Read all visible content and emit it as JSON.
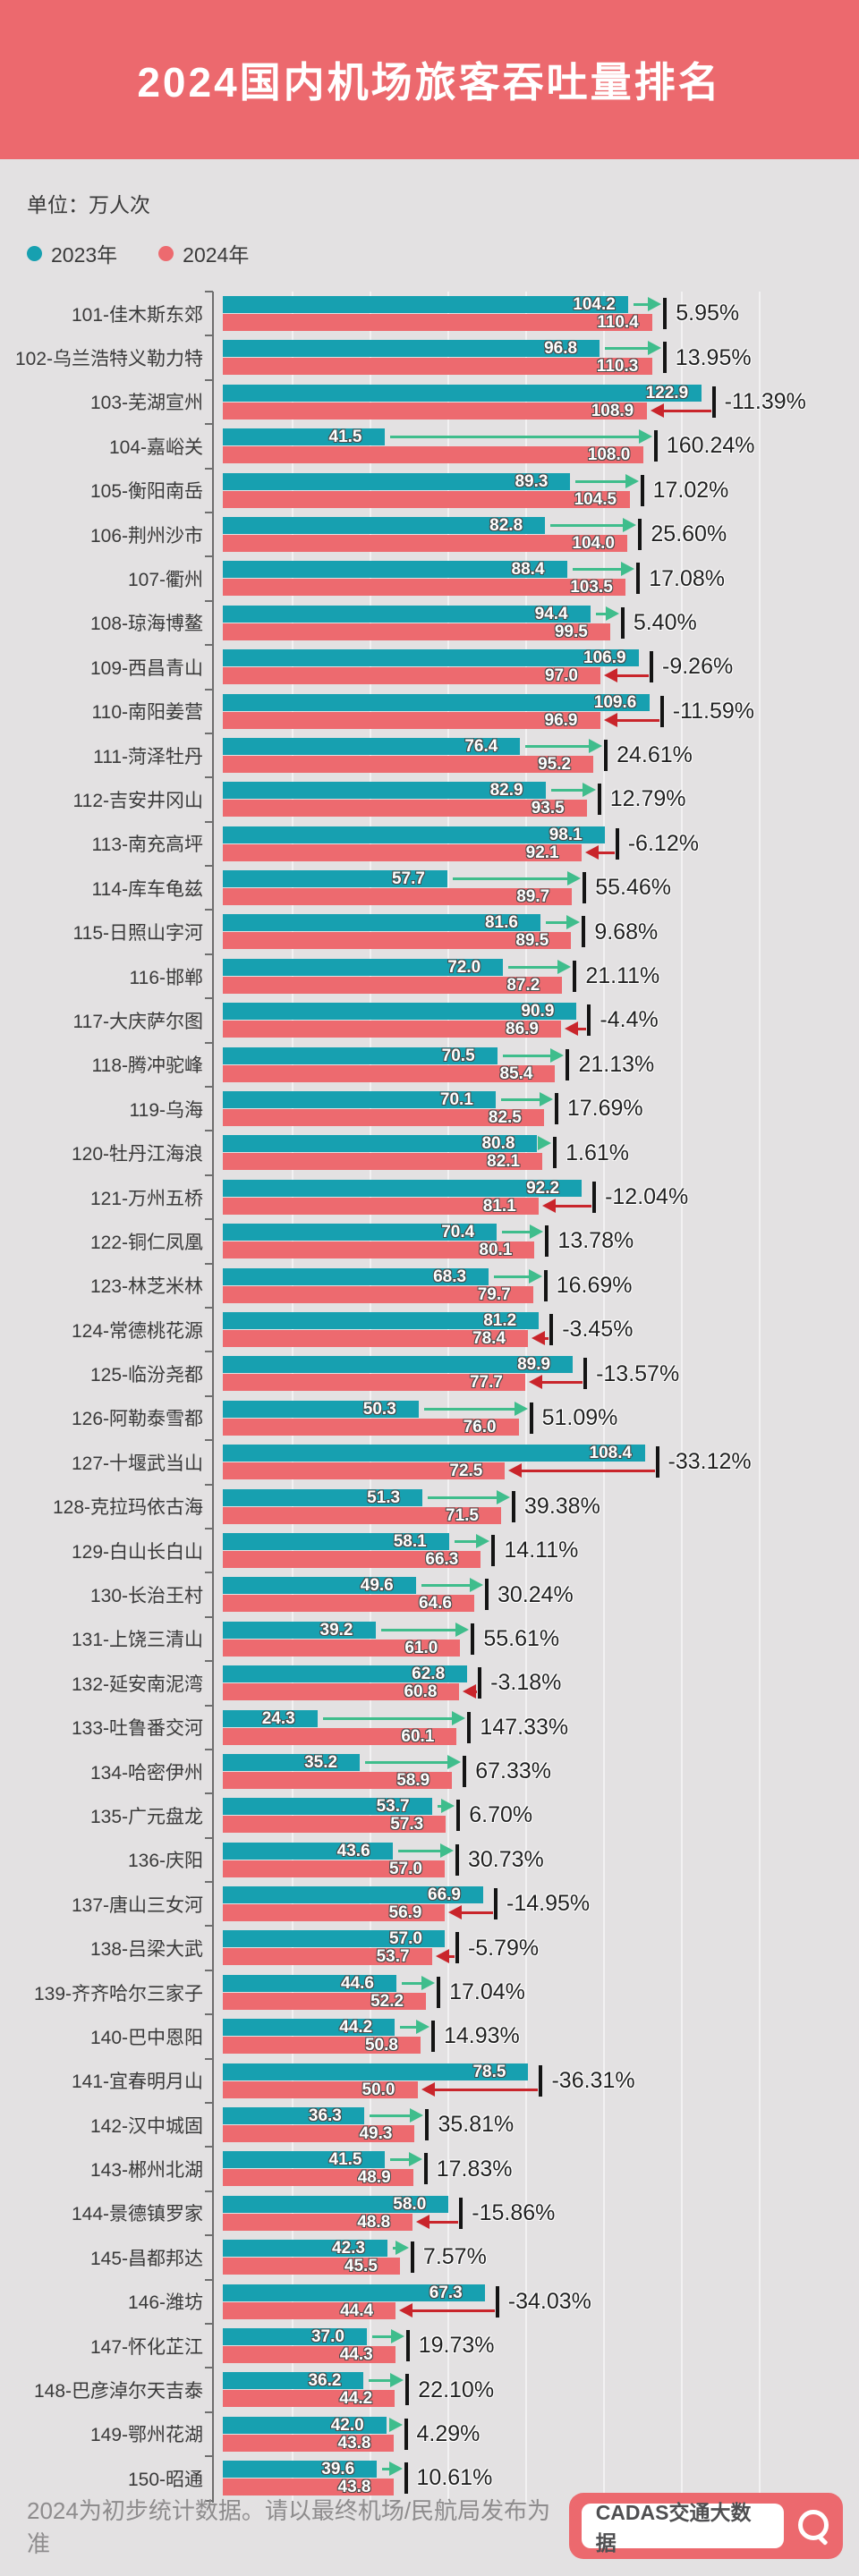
{
  "header": {
    "title": "2024国内机场旅客吞吐量排名"
  },
  "meta": {
    "unit_label": "单位：万人次"
  },
  "legend": [
    {
      "label": "2023年",
      "color": "#17a0b0"
    },
    {
      "label": "2024年",
      "color": "#ed6a6f"
    }
  ],
  "footer": {
    "note": "2024为初步统计数据。请以最终机场/民航局发布为准",
    "brand": "CADAS交通大数据",
    "search_icon": "magnifier"
  },
  "colors": {
    "header_bg": "#ec696e",
    "page_bg": "#e3e1e2",
    "bar_2023": "#17a0b0",
    "bar_2024": "#ed6a6f",
    "arrow_up": "#3fbd8c",
    "arrow_down": "#c9252b",
    "tick": "#141414"
  },
  "chart_data": {
    "type": "bar",
    "orientation": "horizontal",
    "title": "2024国内机场旅客吞吐量排名",
    "unit": "万人次",
    "xlim": [
      0,
      140
    ],
    "grid_step": 20,
    "legend_position": "top-left",
    "categories": [
      "101-佳木斯东郊",
      "102-乌兰浩特义勒力特",
      "103-芜湖宣州",
      "104-嘉峪关",
      "105-衡阳南岳",
      "106-荆州沙市",
      "107-衢州",
      "108-琼海博鳌",
      "109-西昌青山",
      "110-南阳姜营",
      "111-菏泽牡丹",
      "112-吉安井冈山",
      "113-南充高坪",
      "114-库车龟兹",
      "115-日照山字河",
      "116-邯郸",
      "117-大庆萨尔图",
      "118-腾冲驼峰",
      "119-乌海",
      "120-牡丹江海浪",
      "121-万州五桥",
      "122-铜仁凤凰",
      "123-林芝米林",
      "124-常德桃花源",
      "125-临汾尧都",
      "126-阿勒泰雪都",
      "127-十堰武当山",
      "128-克拉玛依古海",
      "129-白山长白山",
      "130-长治王村",
      "131-上饶三清山",
      "132-延安南泥湾",
      "133-吐鲁番交河",
      "134-哈密伊州",
      "135-广元盘龙",
      "136-庆阳",
      "137-唐山三女河",
      "138-吕梁大武",
      "139-齐齐哈尔三家子",
      "140-巴中恩阳",
      "141-宜春明月山",
      "142-汉中城固",
      "143-郴州北湖",
      "144-景德镇罗家",
      "145-昌都邦达",
      "146-潍坊",
      "147-怀化芷江",
      "148-巴彦淖尔天吉泰",
      "149-鄂州花湖",
      "150-昭通"
    ],
    "series": [
      {
        "name": "2023年",
        "color": "#17a0b0",
        "values": [
          "104.2",
          "96.8",
          "122.9",
          "41.5",
          "89.3",
          "82.8",
          "88.4",
          "94.4",
          "106.9",
          "109.6",
          "76.4",
          "82.9",
          "98.1",
          "57.7",
          "81.6",
          "72.0",
          "90.9",
          "70.5",
          "70.1",
          "80.8",
          "92.2",
          "70.4",
          "68.3",
          "81.2",
          "89.9",
          "50.3",
          "108.4",
          "51.3",
          "58.1",
          "49.6",
          "39.2",
          "62.8",
          "24.3",
          "35.2",
          "53.7",
          "43.6",
          "66.9",
          "57.0",
          "44.6",
          "44.2",
          "78.5",
          "36.3",
          "41.5",
          "58.0",
          "42.3",
          "67.3",
          "37.0",
          "36.2",
          "42.0",
          "39.6"
        ]
      },
      {
        "name": "2024年",
        "color": "#ed6a6f",
        "values": [
          "110.4",
          "110.3",
          "108.9",
          "108.0",
          "104.5",
          "104.0",
          "103.5",
          "99.5",
          "97.0",
          "96.9",
          "95.2",
          "93.5",
          "92.1",
          "89.7",
          "89.5",
          "87.2",
          "86.9",
          "85.4",
          "82.5",
          "82.1",
          "81.1",
          "80.1",
          "79.7",
          "78.4",
          "77.7",
          "76.0",
          "72.5",
          "71.5",
          "66.3",
          "64.6",
          "61.0",
          "60.8",
          "60.1",
          "58.9",
          "57.3",
          "57.0",
          "56.9",
          "53.7",
          "52.2",
          "50.8",
          "50.0",
          "49.3",
          "48.9",
          "48.8",
          "45.5",
          "44.4",
          "44.3",
          "44.2",
          "43.8",
          "43.8"
        ]
      }
    ],
    "pct_change": [
      "5.95%",
      "13.95%",
      "-11.39%",
      "160.24%",
      "17.02%",
      "25.60%",
      "17.08%",
      "5.40%",
      "-9.26%",
      "-11.59%",
      "24.61%",
      "12.79%",
      "-6.12%",
      "55.46%",
      "9.68%",
      "21.11%",
      "-4.4%",
      "21.13%",
      "17.69%",
      "1.61%",
      "-12.04%",
      "13.78%",
      "16.69%",
      "-3.45%",
      "-13.57%",
      "51.09%",
      "-33.12%",
      "39.38%",
      "14.11%",
      "30.24%",
      "55.61%",
      "-3.18%",
      "147.33%",
      "67.33%",
      "6.70%",
      "30.73%",
      "-14.95%",
      "-5.79%",
      "17.04%",
      "14.93%",
      "-36.31%",
      "35.81%",
      "17.83%",
      "-15.86%",
      "7.57%",
      "-34.03%",
      "19.73%",
      "22.10%",
      "4.29%",
      "10.61%"
    ]
  }
}
